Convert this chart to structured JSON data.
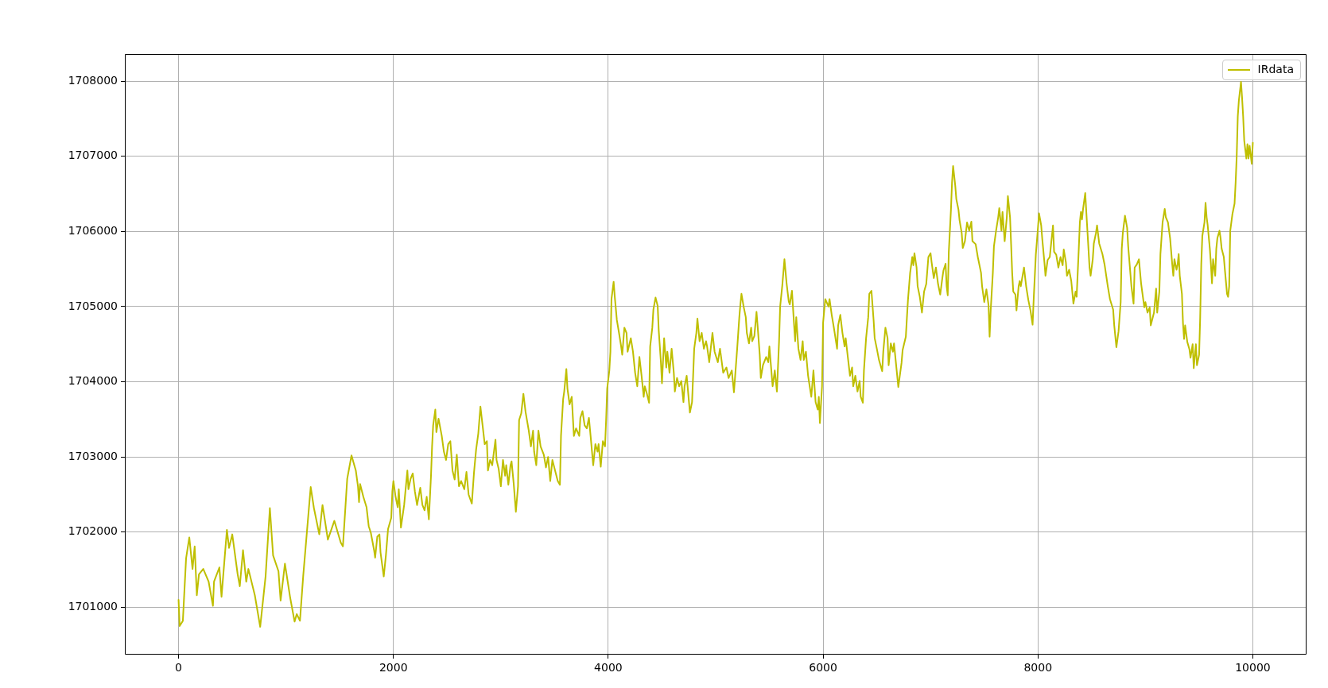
{
  "chart_data": {
    "type": "line",
    "x": [
      0,
      10,
      40,
      70,
      100,
      130,
      150,
      170,
      190,
      230,
      280,
      320,
      330,
      380,
      400,
      450,
      470,
      500,
      550,
      570,
      600,
      630,
      650,
      710,
      760,
      810,
      850,
      880,
      930,
      950,
      990,
      1040,
      1080,
      1100,
      1130,
      1160,
      1230,
      1260,
      1310,
      1340,
      1390,
      1450,
      1510,
      1530,
      1570,
      1610,
      1650,
      1670,
      1680,
      1690,
      1720,
      1750,
      1770,
      1790,
      1820,
      1830,
      1850,
      1870,
      1880,
      1910,
      1930,
      1950,
      1980,
      1990,
      2000,
      2020,
      2040,
      2050,
      2070,
      2100,
      2130,
      2140,
      2160,
      2180,
      2200,
      2220,
      2250,
      2270,
      2290,
      2310,
      2330,
      2350,
      2360,
      2370,
      2390,
      2400,
      2420,
      2450,
      2470,
      2490,
      2510,
      2530,
      2550,
      2570,
      2590,
      2610,
      2630,
      2660,
      2680,
      2700,
      2730,
      2750,
      2770,
      2790,
      2810,
      2830,
      2850,
      2870,
      2880,
      2900,
      2920,
      2950,
      2960,
      2980,
      3000,
      3020,
      3040,
      3050,
      3070,
      3090,
      3100,
      3120,
      3140,
      3160,
      3170,
      3190,
      3210,
      3230,
      3260,
      3280,
      3300,
      3310,
      3330,
      3350,
      3370,
      3400,
      3420,
      3440,
      3460,
      3480,
      3510,
      3530,
      3550,
      3560,
      3580,
      3590,
      3610,
      3620,
      3640,
      3660,
      3680,
      3700,
      3730,
      3740,
      3760,
      3780,
      3800,
      3820,
      3840,
      3860,
      3880,
      3900,
      3910,
      3930,
      3950,
      3970,
      3980,
      3990,
      4010,
      4020,
      4030,
      4050,
      4060,
      4080,
      4100,
      4120,
      4130,
      4150,
      4170,
      4180,
      4210,
      4230,
      4250,
      4270,
      4290,
      4310,
      4330,
      4340,
      4360,
      4380,
      4390,
      4410,
      4420,
      4440,
      4460,
      4470,
      4490,
      4500,
      4520,
      4540,
      4550,
      4570,
      4590,
      4610,
      4620,
      4640,
      4660,
      4680,
      4700,
      4710,
      4730,
      4760,
      4780,
      4790,
      4800,
      4820,
      4830,
      4850,
      4870,
      4890,
      4910,
      4920,
      4940,
      4970,
      4990,
      5020,
      5040,
      5070,
      5100,
      5120,
      5150,
      5170,
      5200,
      5220,
      5230,
      5240,
      5260,
      5280,
      5290,
      5310,
      5330,
      5340,
      5360,
      5380,
      5390,
      5410,
      5420,
      5440,
      5470,
      5490,
      5500,
      5530,
      5550,
      5570,
      5590,
      5600,
      5620,
      5640,
      5660,
      5680,
      5690,
      5710,
      5730,
      5740,
      5750,
      5770,
      5790,
      5810,
      5820,
      5840,
      5860,
      5890,
      5910,
      5930,
      5950,
      5960,
      5970,
      5990,
      6000,
      6020,
      6050,
      6060,
      6080,
      6100,
      6130,
      6140,
      6160,
      6180,
      6200,
      6210,
      6230,
      6250,
      6270,
      6280,
      6300,
      6320,
      6340,
      6350,
      6370,
      6380,
      6400,
      6420,
      6430,
      6450,
      6470,
      6480,
      6500,
      6520,
      6550,
      6560,
      6580,
      6600,
      6610,
      6630,
      6650,
      6660,
      6700,
      6730,
      6740,
      6770,
      6780,
      6790,
      6810,
      6830,
      6840,
      6850,
      6870,
      6880,
      6900,
      6920,
      6940,
      6960,
      6980,
      7000,
      7010,
      7030,
      7050,
      7070,
      7090,
      7110,
      7120,
      7140,
      7150,
      7160,
      7170,
      7190,
      7200,
      7210,
      7230,
      7240,
      7260,
      7270,
      7290,
      7300,
      7320,
      7340,
      7360,
      7380,
      7390,
      7420,
      7440,
      7470,
      7480,
      7500,
      7520,
      7540,
      7550,
      7560,
      7580,
      7590,
      7610,
      7630,
      7640,
      7660,
      7670,
      7690,
      7710,
      7720,
      7740,
      7750,
      7760,
      7770,
      7790,
      7800,
      7820,
      7830,
      7840,
      7870,
      7890,
      7910,
      7930,
      7950,
      7960,
      7980,
      8000,
      8010,
      8030,
      8040,
      8060,
      8070,
      8090,
      8110,
      8130,
      8140,
      8150,
      8170,
      8190,
      8210,
      8230,
      8240,
      8260,
      8270,
      8290,
      8310,
      8330,
      8350,
      8360,
      8380,
      8390,
      8400,
      8410,
      8420,
      8440,
      8450,
      8470,
      8480,
      8490,
      8510,
      8520,
      8540,
      8550,
      8570,
      8600,
      8620,
      8650,
      8670,
      8700,
      8710,
      8730,
      8750,
      8770,
      8780,
      8790,
      8810,
      8830,
      8840,
      8870,
      8890,
      8900,
      8920,
      8940,
      8960,
      8970,
      8990,
      9000,
      9020,
      9040,
      9050,
      9080,
      9100,
      9110,
      9130,
      9140,
      9160,
      9180,
      9190,
      9210,
      9230,
      9250,
      9260,
      9270,
      9290,
      9300,
      9310,
      9320,
      9340,
      9350,
      9360,
      9370,
      9390,
      9410,
      9420,
      9440,
      9450,
      9470,
      9480,
      9500,
      9510,
      9520,
      9530,
      9550,
      9560,
      9570,
      9580,
      9600,
      9610,
      9620,
      9630,
      9650,
      9660,
      9670,
      9690,
      9700,
      9710,
      9730,
      9740,
      9760,
      9770,
      9780,
      9790,
      9810,
      9830,
      9840,
      9850,
      9860,
      9870,
      9890,
      9900,
      9910,
      9920,
      9940,
      9950,
      9960,
      9970,
      9990,
      10000
    ],
    "series": [
      {
        "name": "IRdata",
        "color": "#bfbf00",
        "values": [
          1701100,
          1700750,
          1700820,
          1701650,
          1701930,
          1701510,
          1701810,
          1701160,
          1701440,
          1701510,
          1701340,
          1701020,
          1701340,
          1701530,
          1701140,
          1702030,
          1701790,
          1701970,
          1701440,
          1701280,
          1701760,
          1701340,
          1701510,
          1701160,
          1700740,
          1701410,
          1702320,
          1701690,
          1701480,
          1701090,
          1701580,
          1701120,
          1700810,
          1700910,
          1700820,
          1701410,
          1702600,
          1702320,
          1701970,
          1702360,
          1701900,
          1702150,
          1701860,
          1701810,
          1702710,
          1703020,
          1702820,
          1702610,
          1702400,
          1702640,
          1702470,
          1702330,
          1702080,
          1701990,
          1701760,
          1701660,
          1701940,
          1701970,
          1701730,
          1701410,
          1701690,
          1702040,
          1702190,
          1702540,
          1702680,
          1702470,
          1702330,
          1702570,
          1702060,
          1702360,
          1702820,
          1702570,
          1702710,
          1702780,
          1702540,
          1702360,
          1702590,
          1702360,
          1702290,
          1702470,
          1702170,
          1702750,
          1703140,
          1703420,
          1703630,
          1703330,
          1703510,
          1703280,
          1703070,
          1702960,
          1703170,
          1703210,
          1702820,
          1702700,
          1703030,
          1702610,
          1702680,
          1702570,
          1702800,
          1702500,
          1702380,
          1702790,
          1703100,
          1703310,
          1703670,
          1703420,
          1703170,
          1703210,
          1702820,
          1702960,
          1702890,
          1703230,
          1702960,
          1702840,
          1702610,
          1702960,
          1702750,
          1702890,
          1702630,
          1702890,
          1702940,
          1702640,
          1702270,
          1702610,
          1703490,
          1703580,
          1703840,
          1703600,
          1703350,
          1703140,
          1703350,
          1703070,
          1702890,
          1703350,
          1703140,
          1703030,
          1702860,
          1703000,
          1702680,
          1702960,
          1702790,
          1702680,
          1702630,
          1703280,
          1703770,
          1703870,
          1704170,
          1703910,
          1703700,
          1703800,
          1703280,
          1703380,
          1703280,
          1703520,
          1703610,
          1703420,
          1703380,
          1703520,
          1703210,
          1702890,
          1703170,
          1703070,
          1703170,
          1702870,
          1703210,
          1703140,
          1703490,
          1703910,
          1704150,
          1704400,
          1705100,
          1705330,
          1705140,
          1704820,
          1704650,
          1704470,
          1704360,
          1704720,
          1704650,
          1704400,
          1704580,
          1704400,
          1704120,
          1703940,
          1704330,
          1704080,
          1703800,
          1703940,
          1703840,
          1703720,
          1704470,
          1704720,
          1704960,
          1705120,
          1705010,
          1704680,
          1704260,
          1703980,
          1704580,
          1704190,
          1704400,
          1704120,
          1704440,
          1704120,
          1703870,
          1704050,
          1703940,
          1704010,
          1703730,
          1703940,
          1704080,
          1703590,
          1703730,
          1704080,
          1704440,
          1704650,
          1704840,
          1704540,
          1704650,
          1704440,
          1704540,
          1704470,
          1704260,
          1704650,
          1704400,
          1704260,
          1704440,
          1704120,
          1704190,
          1704050,
          1704150,
          1703860,
          1704440,
          1704860,
          1705030,
          1705170,
          1705000,
          1704860,
          1704650,
          1704510,
          1704720,
          1704540,
          1704610,
          1704930,
          1704750,
          1704360,
          1704050,
          1704220,
          1704330,
          1704260,
          1704470,
          1703940,
          1704150,
          1703870,
          1704540,
          1705000,
          1705280,
          1705630,
          1705310,
          1705070,
          1705030,
          1705210,
          1704750,
          1704540,
          1704860,
          1704440,
          1704290,
          1704540,
          1704290,
          1704400,
          1704080,
          1703800,
          1704150,
          1703730,
          1703630,
          1703800,
          1703450,
          1703940,
          1704790,
          1705100,
          1705000,
          1705100,
          1704890,
          1704720,
          1704440,
          1704750,
          1704890,
          1704650,
          1704470,
          1704580,
          1704330,
          1704080,
          1704190,
          1703940,
          1704080,
          1703870,
          1704010,
          1703800,
          1703720,
          1704150,
          1704580,
          1704860,
          1705170,
          1705210,
          1704820,
          1704580,
          1704440,
          1704290,
          1704140,
          1704400,
          1704720,
          1704580,
          1704220,
          1704510,
          1704400,
          1704510,
          1703930,
          1704250,
          1704420,
          1704600,
          1704850,
          1705090,
          1705450,
          1705660,
          1705550,
          1705710,
          1705520,
          1705270,
          1705130,
          1704920,
          1705200,
          1705300,
          1705660,
          1705710,
          1705590,
          1705380,
          1705520,
          1705300,
          1705160,
          1705380,
          1705480,
          1705570,
          1705270,
          1705150,
          1705730,
          1706290,
          1706650,
          1706870,
          1706610,
          1706430,
          1706290,
          1706150,
          1705980,
          1705780,
          1705870,
          1706120,
          1706010,
          1706130,
          1705870,
          1705830,
          1705660,
          1705450,
          1705270,
          1705060,
          1705230,
          1705020,
          1704600,
          1704950,
          1705450,
          1705800,
          1706010,
          1706190,
          1706310,
          1706010,
          1706260,
          1705870,
          1706190,
          1706470,
          1706190,
          1705830,
          1705450,
          1705200,
          1705160,
          1704950,
          1705270,
          1705340,
          1705270,
          1705520,
          1705270,
          1705090,
          1704950,
          1704760,
          1705090,
          1705690,
          1706050,
          1706240,
          1706080,
          1705900,
          1705590,
          1705410,
          1705620,
          1705660,
          1705940,
          1706080,
          1705730,
          1705690,
          1705520,
          1705660,
          1705550,
          1705760,
          1705590,
          1705410,
          1705490,
          1705340,
          1705040,
          1705200,
          1705130,
          1705770,
          1706120,
          1706260,
          1706160,
          1706300,
          1706510,
          1706260,
          1705770,
          1705520,
          1705410,
          1705630,
          1705840,
          1705980,
          1706080,
          1705840,
          1705700,
          1705560,
          1705270,
          1705100,
          1704960,
          1704750,
          1704460,
          1704670,
          1705060,
          1705770,
          1705980,
          1706210,
          1706050,
          1705800,
          1705270,
          1705040,
          1705520,
          1705560,
          1705630,
          1705310,
          1705200,
          1704990,
          1705060,
          1704920,
          1704990,
          1704750,
          1704920,
          1705240,
          1704920,
          1705200,
          1705700,
          1706120,
          1706300,
          1706190,
          1706120,
          1705910,
          1705560,
          1705410,
          1705630,
          1705490,
          1705560,
          1705700,
          1705410,
          1705170,
          1704780,
          1704570,
          1704750,
          1704530,
          1704430,
          1704320,
          1704500,
          1704180,
          1704500,
          1704220,
          1704360,
          1704850,
          1705560,
          1705940,
          1706120,
          1706380,
          1706190,
          1706080,
          1705770,
          1705560,
          1705310,
          1705630,
          1705410,
          1705770,
          1705910,
          1706010,
          1705910,
          1705770,
          1705660,
          1705490,
          1705170,
          1705130,
          1705270,
          1706010,
          1706230,
          1706370,
          1706650,
          1707000,
          1707530,
          1707740,
          1707990,
          1707780,
          1707530,
          1707210,
          1706970,
          1707160,
          1706970,
          1707140,
          1706900,
          1707180
        ]
      }
    ],
    "xlim": [
      -500,
      10500
    ],
    "ylim": [
      1700370,
      1708360
    ],
    "xticks": [
      0,
      2000,
      4000,
      6000,
      8000,
      10000
    ],
    "yticks": [
      1701000,
      1702000,
      1703000,
      1704000,
      1705000,
      1706000,
      1707000,
      1708000
    ],
    "grid": true,
    "legend": "top right"
  }
}
